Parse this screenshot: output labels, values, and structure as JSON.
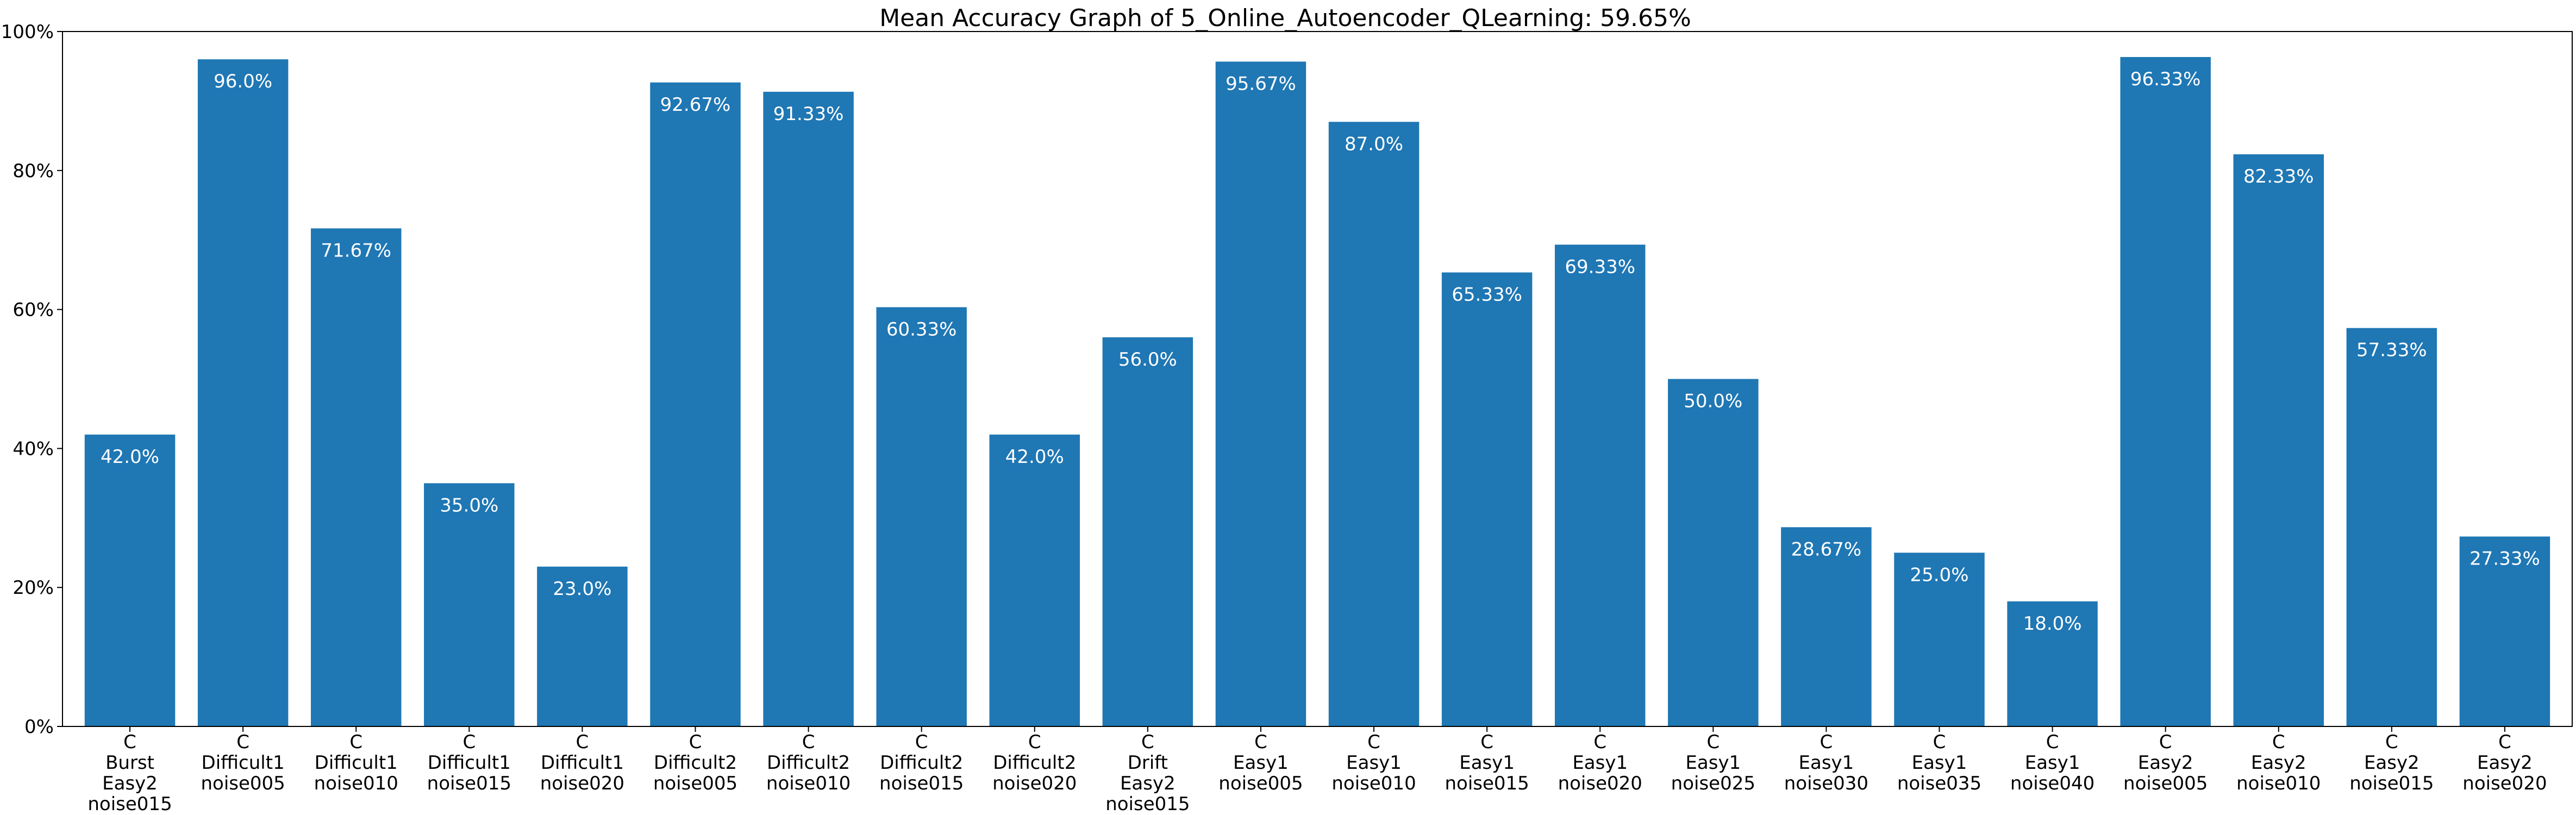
{
  "chart_data": {
    "type": "bar",
    "title": "Mean Accuracy Graph of 5_Online_Autoencoder_QLearning: 59.65%",
    "xlabel": "",
    "ylabel": "",
    "ylim": [
      0,
      100
    ],
    "yticks": [
      "0%",
      "20%",
      "40%",
      "60%",
      "80%",
      "100%"
    ],
    "grid": false,
    "bar_color": "#1f77b4",
    "categories": [
      [
        "C",
        "Burst",
        "Easy2",
        "noise015"
      ],
      [
        "C",
        "Difficult1",
        "noise005"
      ],
      [
        "C",
        "Difficult1",
        "noise010"
      ],
      [
        "C",
        "Difficult1",
        "noise015"
      ],
      [
        "C",
        "Difficult1",
        "noise020"
      ],
      [
        "C",
        "Difficult2",
        "noise005"
      ],
      [
        "C",
        "Difficult2",
        "noise010"
      ],
      [
        "C",
        "Difficult2",
        "noise015"
      ],
      [
        "C",
        "Difficult2",
        "noise020"
      ],
      [
        "C",
        "Drift",
        "Easy2",
        "noise015"
      ],
      [
        "C",
        "Easy1",
        "noise005"
      ],
      [
        "C",
        "Easy1",
        "noise010"
      ],
      [
        "C",
        "Easy1",
        "noise015"
      ],
      [
        "C",
        "Easy1",
        "noise020"
      ],
      [
        "C",
        "Easy1",
        "noise025"
      ],
      [
        "C",
        "Easy1",
        "noise030"
      ],
      [
        "C",
        "Easy1",
        "noise035"
      ],
      [
        "C",
        "Easy1",
        "noise040"
      ],
      [
        "C",
        "Easy2",
        "noise005"
      ],
      [
        "C",
        "Easy2",
        "noise010"
      ],
      [
        "C",
        "Easy2",
        "noise015"
      ],
      [
        "C",
        "Easy2",
        "noise020"
      ]
    ],
    "values": [
      42.0,
      96.0,
      71.67,
      35.0,
      23.0,
      92.67,
      91.33,
      60.33,
      42.0,
      56.0,
      95.67,
      87.0,
      65.33,
      69.33,
      50.0,
      28.67,
      25.0,
      18.0,
      96.33,
      82.33,
      57.33,
      27.33
    ],
    "data_labels": [
      "42.0%",
      "96.0%",
      "71.67%",
      "35.0%",
      "23.0%",
      "92.67%",
      "91.33%",
      "60.33%",
      "42.0%",
      "56.0%",
      "95.67%",
      "87.0%",
      "65.33%",
      "69.33%",
      "50.0%",
      "28.67%",
      "25.0%",
      "18.0%",
      "96.33%",
      "82.33%",
      "57.33%",
      "27.33%"
    ]
  }
}
